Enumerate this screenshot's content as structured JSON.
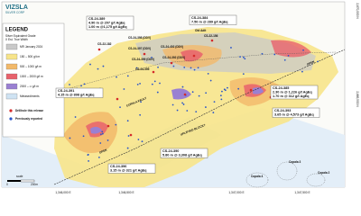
{
  "header": {
    "brand": "VIZSLA",
    "brand_sub": "SILVER CORP"
  },
  "legend": {
    "title": "LEGEND",
    "subtitle": "Silver Equivalent Grade",
    "subtitle2": "X Est. True Width",
    "items": [
      {
        "label": "MR January 2024",
        "color": "#c9c9c9"
      },
      {
        "label": "150 – 500 g/t m",
        "color": "#f7e48a"
      },
      {
        "label": "500 – 1000 g/t m",
        "color": "#f2b96a"
      },
      {
        "label": "1000 – 2000 g/t m",
        "color": "#e8626c"
      },
      {
        "label": "2000 – ∞ g/t m",
        "color": "#9a80d2"
      },
      {
        "label": "Metasediments",
        "color": "#cfe3f3"
      }
    ],
    "markers": [
      {
        "label": "Drillhole this release",
        "color": "#d42a2a"
      },
      {
        "label": "Previously reported",
        "color": "#2a55c8"
      }
    ]
  },
  "callouts": [
    {
      "hole": "CS-24-389",
      "lines": [
        "4.90 m @ 207 g/t AgEq",
        "1.00 m @1,175 g/t AgEq"
      ]
    },
    {
      "hole": "CS-24-384",
      "lines": [
        "7.50 m @ 289 g/t AgEq"
      ]
    },
    {
      "hole": "CS-24-391",
      "lines": [
        "4.15 m @ 898 g/t AgEq"
      ]
    },
    {
      "hole": "CS-24-385",
      "lines": [
        "2.30 m @ 1,226 g/t AgEq",
        "1.70 m @ 312 g/t AgEq"
      ]
    },
    {
      "hole": "CS-24-393",
      "lines": [
        "3.65 m @ 4,573 g/t AgEq"
      ]
    },
    {
      "hole": "CS-24-390",
      "lines": [
        "5.80 m @ 3,308 g/t AgEq"
      ]
    },
    {
      "hole": "CS-24-396",
      "lines": [
        "3.15 m @ 321 g/t AgEq"
      ]
    }
  ],
  "labels": [
    "CS-22-182",
    "CS-24-398 (DDV)",
    "CS-24-397 (DDV)",
    "CS-24-399 (DDV)",
    "CS-22-156",
    "CS-24-402 (DDV)",
    "CS-24-392 (DDV)",
    "CS-24-395",
    "Old Adit",
    "COPALA FAULT",
    "UPLIFTED BLOCK?",
    "OPEN",
    "OPEN",
    "Copala 4",
    "Copala 3",
    "Copala 2"
  ],
  "scale": {
    "title": "scale",
    "start": "0",
    "end": "200m"
  },
  "grid": {
    "x_labels": [
      "1,346,000 E",
      "1,346,500 E",
      "1,347,000 E",
      "1,347,500 E"
    ],
    "y_labels": [
      "2,670,000 N",
      "2,669,500 N"
    ]
  }
}
